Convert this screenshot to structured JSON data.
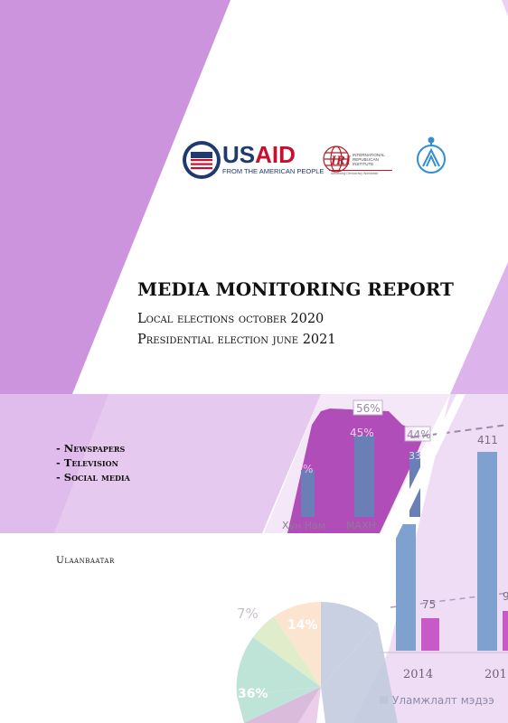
{
  "logos": {
    "usaid_seal_text": "USAID",
    "usaid_word_us": "US",
    "usaid_word_aid": "AID",
    "usaid_tagline": "FROM THE AMERICAN PEOPLE",
    "iri_text": "IRI",
    "iri_subtitle": "INTERNATIONAL REPUBLICAN INSTITUTE",
    "iri_tagline": "Advancing Democracy Worldwide"
  },
  "report": {
    "title": "MEDIA MONITORING REPORT",
    "subtitle_1": "Local elections october 2020",
    "subtitle_2": "Presidential election june 2021"
  },
  "media_list": [
    "- Newspapers",
    "- Television",
    "- Social media"
  ],
  "city": "Ulaanbaatar",
  "background_chart_fragments": {
    "bar_chart": {
      "percent_labels": [
        "%",
        "56%",
        "45%",
        "44%",
        "33"
      ],
      "category_labels": [
        "Хүн Нам",
        "МАХН"
      ]
    },
    "year_chart": {
      "value_labels": [
        "411",
        "75",
        "9"
      ],
      "year_labels": [
        "2014",
        "201"
      ],
      "legend_text": "Уламжлалт мэдээ"
    },
    "pie_chart": {
      "slice_labels": [
        "7%",
        "14%",
        "36%"
      ]
    }
  },
  "colors": {
    "purple_light": "#ddb6ea",
    "purple_mid": "#cc94dd",
    "magenta": "#b04db8",
    "bar_blue": "#6f8fc5",
    "text": "#111111"
  }
}
